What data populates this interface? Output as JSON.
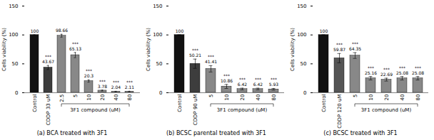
{
  "chart_data": [
    {
      "type": "bar",
      "title": "(a)  BCA treated with 3F1",
      "ylabel": "Cells viability (%)",
      "ylim": [
        0,
        150
      ],
      "yticks": [
        0,
        50,
        100,
        150
      ],
      "categories": [
        "Control",
        "CDDP 33 uM",
        "2.5",
        "5",
        "10",
        "20",
        "40",
        "80"
      ],
      "values": [
        100,
        43.67,
        98.66,
        65.13,
        20.3,
        3.78,
        2.04,
        2.11
      ],
      "errors": [
        0,
        3.5,
        2.5,
        4.5,
        2.0,
        0.8,
        0.5,
        0.5
      ],
      "colors": [
        "#111111",
        "#3d3d3d",
        "#888888",
        "#888888",
        "#888888",
        "#888888",
        "#888888",
        "#888888"
      ],
      "significance": [
        null,
        "***",
        null,
        "***",
        "***",
        "***",
        "***",
        "***"
      ],
      "data_labels": true,
      "annotations": [
        {
          "text": "3F1 compound (uM)",
          "from": "2.5",
          "to": "80"
        }
      ]
    },
    {
      "type": "bar",
      "title": "(b)  BCSC parental treated with 3F1",
      "ylabel": "Cells viability (%)",
      "ylim": [
        0,
        150
      ],
      "yticks": [
        0,
        50,
        100,
        150
      ],
      "categories": [
        "Control",
        "CDDP 90 uM",
        "5",
        "10",
        "20",
        "40",
        "80"
      ],
      "values": [
        100,
        50.21,
        41.41,
        10.86,
        6.42,
        6.42,
        5.93
      ],
      "errors": [
        0,
        8.0,
        5.5,
        3.5,
        1.5,
        1.5,
        1.5
      ],
      "colors": [
        "#111111",
        "#3d3d3d",
        "#888888",
        "#888888",
        "#888888",
        "#888888",
        "#888888"
      ],
      "significance": [
        null,
        "***",
        "***",
        "***",
        "***",
        "***",
        "***"
      ],
      "data_labels": true,
      "annotations": [
        {
          "text": "3F1 compound (uM)",
          "from": "5",
          "to": "80"
        }
      ]
    },
    {
      "type": "bar",
      "title": "(c)  BCSC treated with 3F1",
      "ylabel": "Cells viability (%)",
      "ylim": [
        0,
        150
      ],
      "yticks": [
        0,
        50,
        100,
        150
      ],
      "categories": [
        "Control",
        "CDDP 120 uM",
        "5",
        "10",
        "20",
        "40",
        "80"
      ],
      "values": [
        100,
        59.87,
        64.35,
        25.16,
        22.69,
        25.08,
        25.08
      ],
      "errors": [
        0,
        8.0,
        5.0,
        3.0,
        2.5,
        3.0,
        3.0
      ],
      "colors": [
        "#111111",
        "#555555",
        "#888888",
        "#888888",
        "#888888",
        "#888888",
        "#888888"
      ],
      "significance": [
        null,
        "***",
        "***",
        "***",
        "***",
        "***",
        "***"
      ],
      "data_labels": true,
      "annotations": [
        {
          "text": "3F1 compound (uM)",
          "from": "5",
          "to": "80"
        }
      ]
    }
  ]
}
